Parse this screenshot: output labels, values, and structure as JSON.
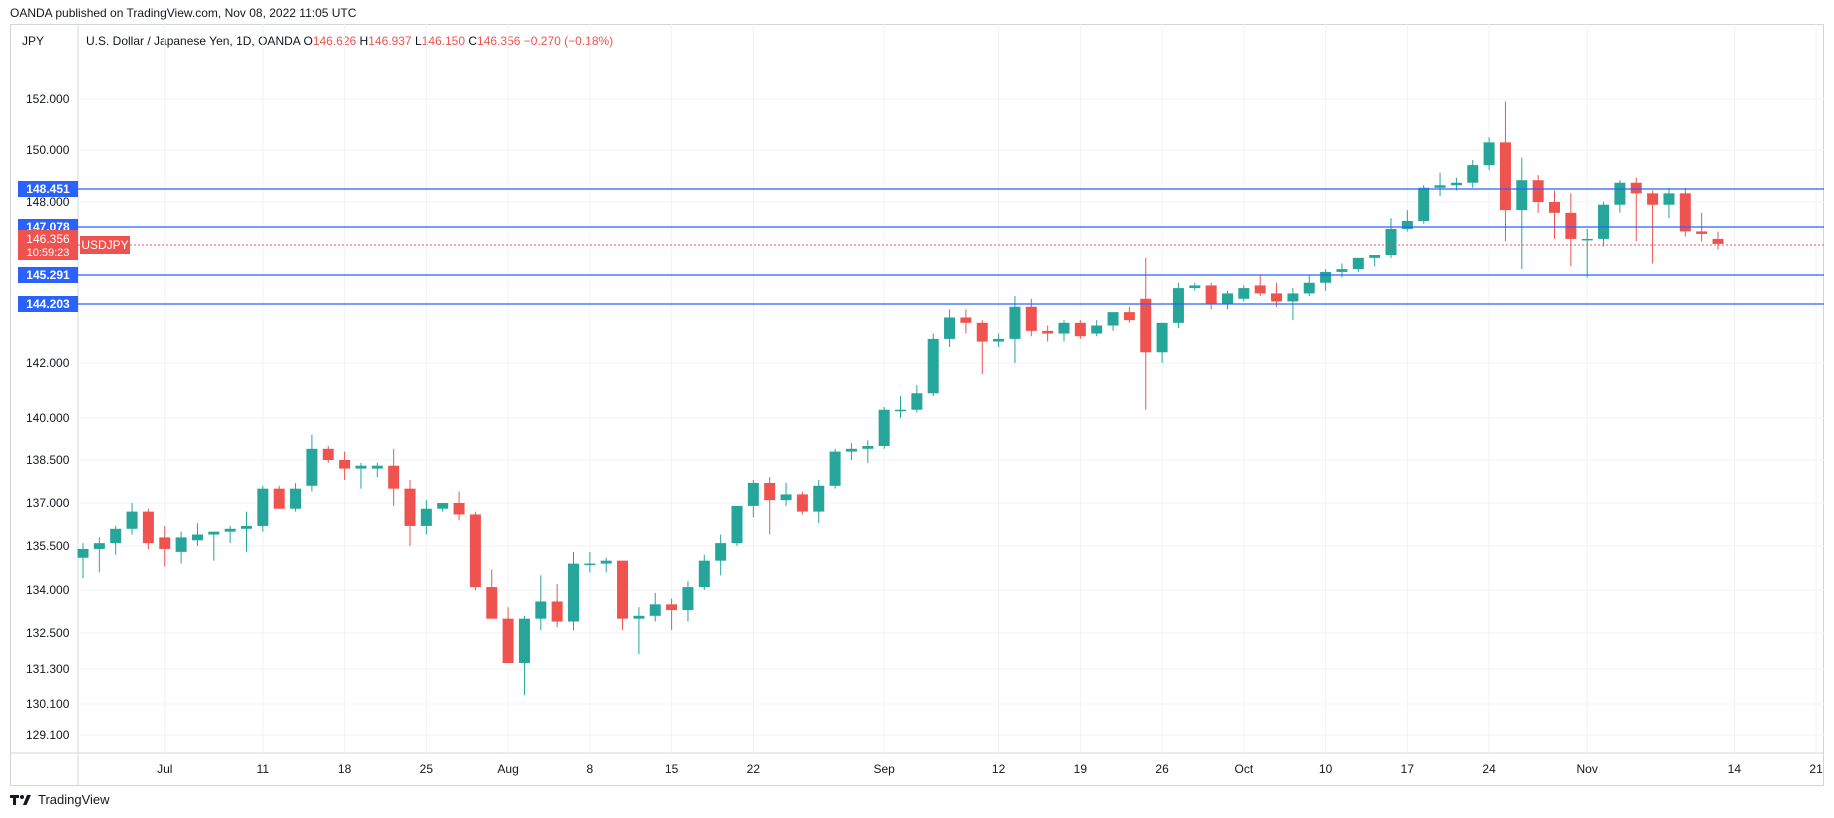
{
  "header": {
    "published": "OANDA published on TradingView.com, Nov 08, 2022 11:05 UTC",
    "currency": "JPY",
    "symbol": "U.S. Dollar / Japanese Yen, 1D, OANDA",
    "o_label": "O",
    "o_value": "146.626",
    "h_label": "H",
    "h_value": "146.937",
    "l_label": "L",
    "l_value": "146.150",
    "c_label": "C",
    "c_value": "146.356",
    "change": "−0.270 (−0.18%)"
  },
  "footer": {
    "brand": "TradingView"
  },
  "colors": {
    "up": "#26a69a",
    "down": "#ef5350",
    "level": "#2962ff",
    "grid": "#f0f3fa"
  },
  "chart_data": {
    "type": "candlestick",
    "y_ticks": [
      {
        "label": "152.000",
        "value": 152.0
      },
      {
        "label": "150.000",
        "value": 150.0
      },
      {
        "label": "148.000",
        "value": 148.0
      },
      {
        "label": "142.000",
        "value": 142.0
      },
      {
        "label": "140.000",
        "value": 140.0
      },
      {
        "label": "138.500",
        "value": 138.5
      },
      {
        "label": "137.000",
        "value": 137.0
      },
      {
        "label": "135.500",
        "value": 135.5
      },
      {
        "label": "134.000",
        "value": 134.0
      },
      {
        "label": "132.500",
        "value": 132.5
      },
      {
        "label": "131.300",
        "value": 131.3
      },
      {
        "label": "130.100",
        "value": 130.1
      },
      {
        "label": "129.100",
        "value": 129.1
      }
    ],
    "x_ticks": [
      {
        "label": "Jul",
        "index": 5
      },
      {
        "label": "11",
        "index": 11
      },
      {
        "label": "18",
        "index": 16
      },
      {
        "label": "25",
        "index": 21
      },
      {
        "label": "Aug",
        "index": 26
      },
      {
        "label": "8",
        "index": 31
      },
      {
        "label": "15",
        "index": 36
      },
      {
        "label": "22",
        "index": 41
      },
      {
        "label": "Sep",
        "index": 49
      },
      {
        "label": "12",
        "index": 56
      },
      {
        "label": "19",
        "index": 61
      },
      {
        "label": "26",
        "index": 66
      },
      {
        "label": "Oct",
        "index": 71
      },
      {
        "label": "10",
        "index": 76
      },
      {
        "label": "17",
        "index": 81
      },
      {
        "label": "24",
        "index": 86
      },
      {
        "label": "Nov",
        "index": 92
      },
      {
        "label": "14",
        "index": 101
      },
      {
        "label": "21",
        "index": 106
      }
    ],
    "levels": [
      {
        "label": "148.451",
        "value": 148.451
      },
      {
        "label": "147.078",
        "value": 147.078
      },
      {
        "label": "145.291",
        "value": 145.291
      },
      {
        "label": "144.203",
        "value": 144.203
      }
    ],
    "last_price": {
      "label": "146.356",
      "value": 146.356,
      "countdown": "10:59:23",
      "symbol": "USDJPY"
    },
    "candles": [
      [
        135.1,
        135.6,
        134.4,
        135.4
      ],
      [
        135.4,
        135.8,
        134.6,
        135.6
      ],
      [
        135.6,
        136.2,
        135.2,
        136.1
      ],
      [
        136.1,
        137.0,
        135.9,
        136.7
      ],
      [
        136.7,
        136.8,
        135.4,
        135.6
      ],
      [
        135.8,
        136.2,
        134.8,
        135.4
      ],
      [
        135.3,
        136.0,
        134.9,
        135.8
      ],
      [
        135.7,
        136.3,
        135.5,
        135.9
      ],
      [
        135.9,
        136.0,
        135.0,
        136.0
      ],
      [
        136.0,
        136.2,
        135.6,
        136.1
      ],
      [
        136.1,
        136.7,
        135.3,
        136.2
      ],
      [
        136.2,
        137.6,
        136.0,
        137.5
      ],
      [
        137.5,
        137.6,
        136.8,
        136.8
      ],
      [
        136.8,
        137.7,
        136.7,
        137.5
      ],
      [
        137.6,
        139.4,
        137.4,
        138.9
      ],
      [
        138.9,
        139.0,
        138.4,
        138.5
      ],
      [
        138.5,
        138.8,
        137.8,
        138.2
      ],
      [
        138.2,
        138.4,
        137.5,
        138.3
      ],
      [
        138.2,
        138.4,
        137.9,
        138.3
      ],
      [
        138.3,
        138.9,
        136.9,
        137.5
      ],
      [
        137.5,
        137.8,
        135.5,
        136.2
      ],
      [
        136.2,
        137.1,
        135.9,
        136.8
      ],
      [
        136.8,
        137.0,
        136.7,
        137.0
      ],
      [
        137.0,
        137.4,
        136.4,
        136.6
      ],
      [
        136.6,
        136.7,
        134.0,
        134.1
      ],
      [
        134.1,
        134.7,
        133.0,
        133.0
      ],
      [
        133.0,
        133.4,
        131.5,
        131.5
      ],
      [
        131.5,
        133.1,
        130.4,
        133.0
      ],
      [
        133.0,
        134.5,
        132.6,
        133.6
      ],
      [
        133.6,
        134.2,
        132.7,
        132.9
      ],
      [
        132.9,
        135.3,
        132.6,
        134.9
      ],
      [
        134.9,
        135.3,
        134.6,
        134.9
      ],
      [
        134.9,
        135.1,
        134.6,
        135.0
      ],
      [
        135.0,
        135.0,
        132.6,
        133.0
      ],
      [
        133.0,
        133.4,
        131.8,
        133.1
      ],
      [
        133.1,
        133.9,
        132.9,
        133.5
      ],
      [
        133.5,
        133.7,
        132.6,
        133.3
      ],
      [
        133.3,
        134.3,
        132.9,
        134.1
      ],
      [
        134.1,
        135.2,
        134.0,
        135.0
      ],
      [
        135.0,
        135.9,
        134.5,
        135.6
      ],
      [
        135.6,
        136.7,
        135.5,
        136.9
      ],
      [
        136.9,
        137.8,
        136.5,
        137.7
      ],
      [
        137.7,
        137.9,
        135.9,
        137.1
      ],
      [
        137.1,
        137.7,
        136.9,
        137.3
      ],
      [
        137.3,
        137.4,
        136.6,
        136.7
      ],
      [
        136.7,
        137.8,
        136.3,
        137.6
      ],
      [
        137.6,
        138.9,
        137.5,
        138.8
      ],
      [
        138.8,
        139.1,
        138.5,
        138.9
      ],
      [
        138.9,
        139.2,
        138.4,
        139.0
      ],
      [
        139.0,
        140.4,
        138.9,
        140.3
      ],
      [
        140.3,
        140.8,
        140.0,
        140.3
      ],
      [
        140.3,
        141.2,
        140.2,
        140.9
      ],
      [
        140.9,
        143.1,
        140.8,
        142.9
      ],
      [
        142.9,
        144.0,
        142.6,
        143.7
      ],
      [
        143.7,
        144.0,
        143.1,
        143.5
      ],
      [
        143.5,
        143.6,
        141.6,
        142.8
      ],
      [
        142.8,
        143.1,
        142.6,
        142.9
      ],
      [
        142.9,
        144.5,
        142.0,
        144.1
      ],
      [
        144.1,
        144.4,
        143.0,
        143.2
      ],
      [
        143.2,
        143.4,
        142.8,
        143.1
      ],
      [
        143.1,
        143.6,
        142.8,
        143.5
      ],
      [
        143.5,
        143.6,
        142.9,
        143.0
      ],
      [
        143.1,
        143.6,
        143.0,
        143.4
      ],
      [
        143.4,
        143.8,
        143.2,
        143.9
      ],
      [
        143.9,
        144.1,
        143.5,
        143.6
      ],
      [
        144.4,
        145.9,
        140.3,
        142.4
      ],
      [
        142.4,
        143.5,
        142.0,
        143.5
      ],
      [
        143.5,
        145.0,
        143.3,
        144.8
      ],
      [
        144.8,
        145.0,
        144.7,
        144.9
      ],
      [
        144.9,
        145.0,
        144.0,
        144.2
      ],
      [
        144.2,
        144.7,
        144.0,
        144.6
      ],
      [
        144.4,
        144.9,
        144.3,
        144.8
      ],
      [
        144.9,
        145.3,
        144.5,
        144.6
      ],
      [
        144.6,
        145.0,
        144.1,
        144.3
      ],
      [
        144.3,
        144.8,
        143.6,
        144.6
      ],
      [
        144.6,
        145.3,
        144.5,
        145.0
      ],
      [
        145.0,
        145.5,
        144.7,
        145.4
      ],
      [
        145.4,
        145.7,
        145.2,
        145.5
      ],
      [
        145.5,
        145.9,
        145.4,
        145.9
      ],
      [
        145.9,
        146.0,
        145.6,
        146.0
      ],
      [
        146.0,
        147.4,
        145.9,
        147.0
      ],
      [
        147.0,
        147.7,
        146.9,
        147.3
      ],
      [
        147.3,
        148.6,
        147.2,
        148.5
      ],
      [
        148.5,
        149.1,
        148.2,
        148.6
      ],
      [
        148.6,
        148.9,
        148.4,
        148.7
      ],
      [
        148.7,
        149.6,
        148.5,
        149.4
      ],
      [
        149.4,
        150.5,
        149.2,
        150.3
      ],
      [
        150.3,
        151.9,
        146.5,
        147.7
      ],
      [
        147.7,
        149.7,
        145.5,
        148.8
      ],
      [
        148.8,
        149.0,
        147.6,
        148.0
      ],
      [
        148.0,
        148.4,
        146.6,
        147.6
      ],
      [
        147.6,
        148.3,
        145.6,
        146.6
      ],
      [
        146.6,
        147.0,
        145.2,
        146.6
      ],
      [
        146.6,
        148.0,
        146.3,
        147.9
      ],
      [
        147.9,
        148.8,
        147.6,
        148.7
      ],
      [
        148.7,
        148.9,
        146.5,
        148.3
      ],
      [
        148.3,
        148.4,
        145.7,
        147.9
      ],
      [
        147.9,
        148.5,
        147.4,
        148.3
      ],
      [
        148.3,
        148.5,
        146.7,
        146.9
      ],
      [
        146.9,
        147.6,
        146.5,
        146.8
      ],
      [
        146.6,
        146.9,
        146.2,
        146.4
      ]
    ]
  }
}
